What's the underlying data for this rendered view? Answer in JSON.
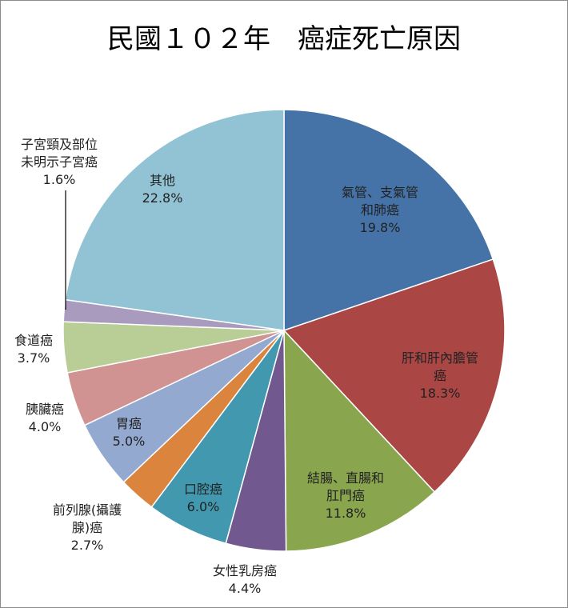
{
  "chart_data": {
    "type": "pie",
    "title": "民國１０２年　癌症死亡原因",
    "start_angle_deg": 0,
    "direction": "clockwise",
    "slices": [
      {
        "label_lines": [
          "氣管、支氣管",
          "和肺癌"
        ],
        "pct_text": "19.8%",
        "value": 19.8,
        "color": "#4572A7"
      },
      {
        "label_lines": [
          "肝和肝內膽管",
          "癌"
        ],
        "pct_text": "18.3%",
        "value": 18.3,
        "color": "#AA4643"
      },
      {
        "label_lines": [
          "結腸、直腸和",
          "肛門癌"
        ],
        "pct_text": "11.8%",
        "value": 11.8,
        "color": "#89A54E"
      },
      {
        "label_lines": [
          "女性乳房癌"
        ],
        "pct_text": "4.4%",
        "value": 4.4,
        "color": "#71588F"
      },
      {
        "label_lines": [
          "口腔癌"
        ],
        "pct_text": "6.0%",
        "value": 6.0,
        "color": "#4198AF"
      },
      {
        "label_lines": [
          "前列腺(攝護",
          "腺)癌"
        ],
        "pct_text": "2.7%",
        "value": 2.7,
        "color": "#DB843D"
      },
      {
        "label_lines": [
          "胃癌"
        ],
        "pct_text": "5.0%",
        "value": 5.0,
        "color": "#93A9CF"
      },
      {
        "label_lines": [
          "胰臟癌"
        ],
        "pct_text": "4.0%",
        "value": 4.0,
        "color": "#D19392"
      },
      {
        "label_lines": [
          "食道癌"
        ],
        "pct_text": "3.7%",
        "value": 3.7,
        "color": "#B9CD96"
      },
      {
        "label_lines": [
          "子宮頸及部位",
          "未明示子宮癌"
        ],
        "pct_text": "1.6%",
        "value": 1.6,
        "color": "#A99BBD"
      },
      {
        "label_lines": [
          "其他"
        ],
        "pct_text": "22.8%",
        "value": 22.8,
        "color": "#92C3D4"
      }
    ]
  }
}
